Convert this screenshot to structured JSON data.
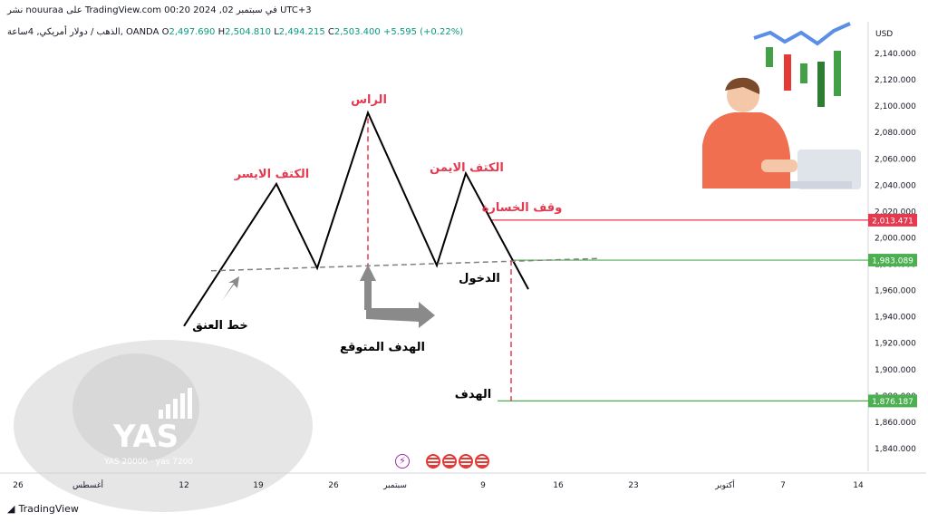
{
  "header": {
    "publish_line": "نشر nouuraa على TradingView.com في سبتمبر 02, 2024 00:20 UTC+3",
    "symbol_line": "الذهب / دولار أمريكي, 4ساعة, OANDA",
    "ohlc": {
      "o_label": "O",
      "o": "2,497.690",
      "h_label": "H",
      "h": "2,504.810",
      "l_label": "L",
      "l": "2,494.215",
      "c_label": "C",
      "c": "2,503.400",
      "change": "+5.595 (+0.22%)"
    }
  },
  "footer": {
    "brand": "TradingView"
  },
  "watermark": {
    "text": "YAS",
    "sub": "YAS 20000 · yas 7200"
  },
  "colors": {
    "annotation_red": "#e53950",
    "stop_line": "#e53950",
    "target_line": "#4caf50",
    "pattern_line": "#000000",
    "neckline": "#808080",
    "axis_text": "#131722"
  },
  "chart_data": {
    "type": "line",
    "currency_label": "USD",
    "y_ticks": [
      1840,
      1860,
      1880,
      1900,
      1920,
      1940,
      1960,
      1980,
      2000,
      2020,
      2040,
      2060,
      2080,
      2100,
      2120,
      2140
    ],
    "y_tick_labels": [
      "1,840.000",
      "1,860.000",
      "1,880.000",
      "1,900.000",
      "1,920.000",
      "1,940.000",
      "1,960.000",
      "1,980.000",
      "2,000.000",
      "2,020.000",
      "2,040.000",
      "2,060.000",
      "2,080.000",
      "2,100.000",
      "2,120.000",
      "2,140.000"
    ],
    "ylim": [
      1830,
      2150
    ],
    "x_ticks": [
      "26",
      "أغسطس",
      "12",
      "19",
      "26",
      "سبتمبر",
      "9",
      "16",
      "23",
      "أكتوبر",
      "7",
      "14"
    ],
    "pattern_points": [
      {
        "x": "12",
        "y": 1933
      },
      {
        "x": "21",
        "y": 2041
      },
      {
        "x": "25",
        "y": 1977
      },
      {
        "x": "أغسطس 30",
        "y": 2095
      },
      {
        "x": "سبتمبر 4",
        "y": 1979
      },
      {
        "x": "سبتمبر 7",
        "y": 2049
      },
      {
        "x": "سبتمبر 13",
        "y": 1961
      }
    ],
    "neckline": [
      {
        "x": "15",
        "y": 1975
      },
      {
        "x": "سبتمبر 19",
        "y": 1983
      }
    ],
    "levels": [
      {
        "name": "stop",
        "value": 2013.471,
        "label": "2,013.471"
      },
      {
        "name": "entry",
        "value": 1983.089,
        "label": "1,983.089"
      },
      {
        "name": "target",
        "value": 1876.187,
        "label": "1,876.187"
      }
    ],
    "annotations": {
      "head": "الراس",
      "left_shoulder": "الكتف الايسر",
      "right_shoulder": "الكتف الايمن",
      "stop_loss": "وقف الخسارة",
      "entry": "الدخول",
      "neckline": "خط العنق",
      "expected_target": "الهدف المتوقع",
      "target": "الهدف"
    }
  }
}
